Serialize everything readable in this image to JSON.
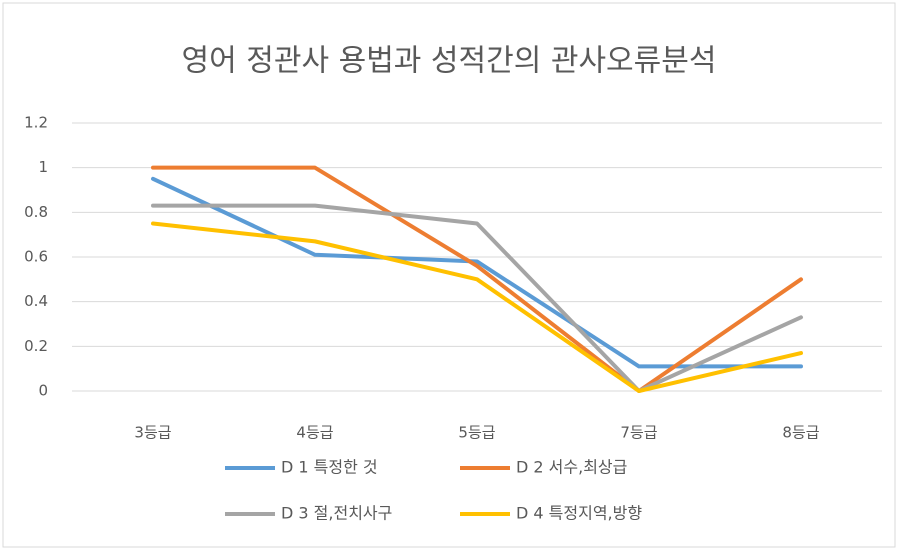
{
  "chart_data": {
    "type": "line",
    "title": "영어 정관사 용법과 성적간의 관사오류분석",
    "categories": [
      "3등급",
      "4등급",
      "5등급",
      "7등급",
      "8등급"
    ],
    "series": [
      {
        "name": "D 1 특정한 것",
        "color": "#5b9bd5",
        "values": [
          0.95,
          0.61,
          0.58,
          0.11,
          0.11
        ]
      },
      {
        "name": "D 2 서수,최상급",
        "color": "#ed7d31",
        "values": [
          1,
          1,
          0.56,
          0,
          0.5
        ]
      },
      {
        "name": "D 3 절,전치사구",
        "color": "#a5a5a5",
        "values": [
          0.83,
          0.83,
          0.75,
          0,
          0.33
        ]
      },
      {
        "name": "D 4 특정지역,방향",
        "color": "#ffc000",
        "values": [
          0.75,
          0.67,
          0.5,
          0,
          0.17
        ]
      }
    ],
    "ylim": [
      0,
      1.2
    ],
    "yticks": [
      0,
      0.2,
      0.4,
      0.6,
      0.8,
      1,
      1.2
    ],
    "grid": true,
    "legend": "bottom"
  }
}
